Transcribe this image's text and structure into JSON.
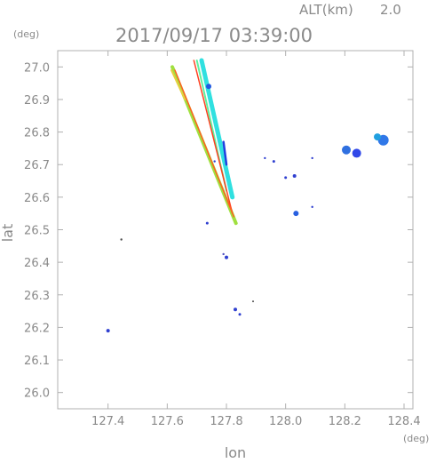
{
  "chart_data": {
    "type": "scatter",
    "title": "2017/09/17 03:39:00",
    "altitude_label": "ALT(km)",
    "altitude_value": "2.0",
    "xlabel": "lon",
    "ylabel": "lat",
    "x_unit": "(deg)",
    "y_unit": "(deg)",
    "xlim": [
      127.23,
      128.43
    ],
    "ylim": [
      25.95,
      27.05
    ],
    "x_ticks": [
      "127.4",
      "127.6",
      "127.8",
      "128.0",
      "128.2",
      "128.4"
    ],
    "y_ticks": [
      "26.0",
      "26.1",
      "26.2",
      "26.3",
      "26.4",
      "26.5",
      "26.6",
      "26.7",
      "26.8",
      "26.9",
      "27.0"
    ],
    "grid": false,
    "streaks": [
      {
        "color": "#a0e040",
        "width": 4,
        "points": [
          [
            127.617,
            27.0
          ],
          [
            127.832,
            26.52
          ]
        ]
      },
      {
        "color": "#e8d040",
        "width": 2,
        "points": [
          [
            127.614,
            26.99
          ],
          [
            127.66,
            26.9
          ]
        ]
      },
      {
        "color": "#30e0e0",
        "width": 5,
        "points": [
          [
            127.716,
            27.02
          ],
          [
            127.82,
            26.6
          ]
        ]
      },
      {
        "color": "#60f0a0",
        "width": 2,
        "points": [
          [
            127.7,
            27.02
          ],
          [
            127.8,
            26.62
          ]
        ]
      },
      {
        "color": "#ff4020",
        "width": 1.5,
        "points": [
          [
            127.69,
            27.02
          ],
          [
            127.82,
            26.55
          ]
        ]
      },
      {
        "color": "#ff6020",
        "width": 1.5,
        "points": [
          [
            127.626,
            26.99
          ],
          [
            127.825,
            26.54
          ]
        ]
      },
      {
        "color": "#2040e0",
        "width": 2.5,
        "points": [
          [
            127.79,
            26.77
          ],
          [
            127.8,
            26.7
          ]
        ]
      }
    ],
    "echoes": [
      {
        "lon": 128.33,
        "lat": 26.775,
        "size": 6,
        "color": "#3078e8"
      },
      {
        "lon": 128.31,
        "lat": 26.785,
        "size": 4,
        "color": "#20a0e0"
      },
      {
        "lon": 128.24,
        "lat": 26.735,
        "size": 5,
        "color": "#3048e8"
      },
      {
        "lon": 128.205,
        "lat": 26.745,
        "size": 5,
        "color": "#3070e0"
      },
      {
        "lon": 127.74,
        "lat": 26.94,
        "size": 3,
        "color": "#2058e0"
      },
      {
        "lon": 128.035,
        "lat": 26.55,
        "size": 3,
        "color": "#2860e0"
      },
      {
        "lon": 128.03,
        "lat": 26.665,
        "size": 2,
        "color": "#3040d0"
      },
      {
        "lon": 128.0,
        "lat": 26.66,
        "size": 1.5,
        "color": "#3040d0"
      },
      {
        "lon": 127.96,
        "lat": 26.71,
        "size": 1.5,
        "color": "#3040d0"
      },
      {
        "lon": 127.93,
        "lat": 26.72,
        "size": 1.2,
        "color": "#3040d0"
      },
      {
        "lon": 128.09,
        "lat": 26.72,
        "size": 1.2,
        "color": "#3040d0"
      },
      {
        "lon": 128.09,
        "lat": 26.57,
        "size": 1.2,
        "color": "#3040d0"
      },
      {
        "lon": 127.76,
        "lat": 26.71,
        "size": 1.2,
        "color": "#3040d0"
      },
      {
        "lon": 127.735,
        "lat": 26.52,
        "size": 1.5,
        "color": "#3040d0"
      },
      {
        "lon": 127.8,
        "lat": 26.415,
        "size": 2,
        "color": "#3040d0"
      },
      {
        "lon": 127.79,
        "lat": 26.425,
        "size": 1.2,
        "color": "#5050c0"
      },
      {
        "lon": 127.445,
        "lat": 26.47,
        "size": 1.2,
        "color": "#505050"
      },
      {
        "lon": 127.4,
        "lat": 26.19,
        "size": 2,
        "color": "#3040d0"
      },
      {
        "lon": 127.83,
        "lat": 26.255,
        "size": 2,
        "color": "#3040d0"
      },
      {
        "lon": 127.845,
        "lat": 26.24,
        "size": 1.5,
        "color": "#3040d0"
      },
      {
        "lon": 127.89,
        "lat": 26.28,
        "size": 1,
        "color": "#505050"
      }
    ]
  }
}
